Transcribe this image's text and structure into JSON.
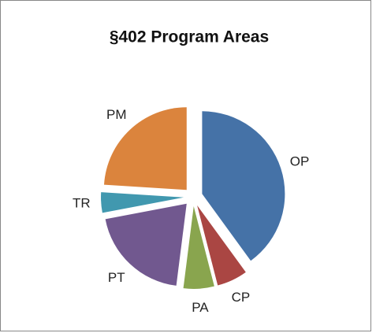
{
  "chart_data": {
    "type": "pie",
    "title": "§402 Program Areas",
    "categories": [
      "OP",
      "CP",
      "PA",
      "PT",
      "TR",
      "PM"
    ],
    "values": [
      40,
      6,
      6,
      20,
      4,
      24
    ],
    "colors": [
      "#4572a7",
      "#aa4643",
      "#89a54e",
      "#71588f",
      "#4198af",
      "#db843d"
    ],
    "exploded": true
  }
}
